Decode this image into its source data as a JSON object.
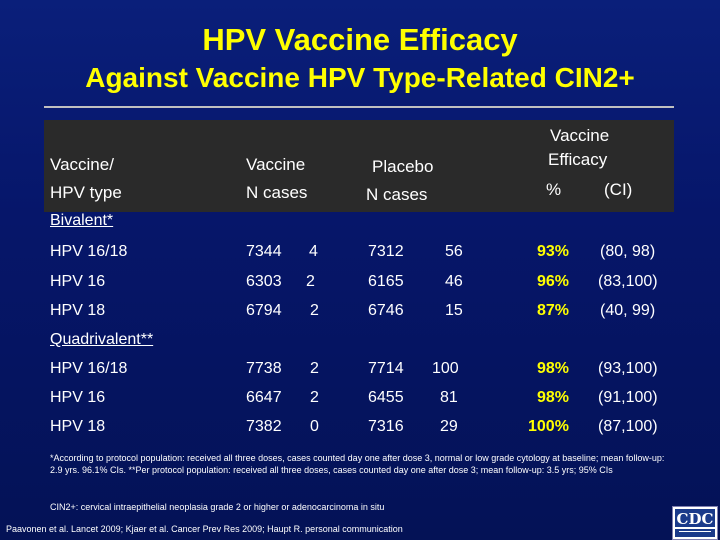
{
  "title": "HPV Vaccine Efficacy",
  "subtitle": "Against Vaccine HPV Type-Related CIN2+",
  "header": {
    "col1_line1": "Vaccine/",
    "col1_line2": "HPV type",
    "col2_line1": "Vaccine",
    "col2_line2": "N   cases",
    "col3_line1": "Placebo",
    "col3_line2": "N   cases",
    "col4_line1": "Vaccine",
    "col4_line2": "Efficacy",
    "col4_pct": "%",
    "col4_ci": "(CI)"
  },
  "sections": {
    "bivalent": "Bivalent*",
    "quadrivalent": "Quadrivalent**"
  },
  "rows": [
    {
      "type": "HPV 16/18",
      "vn": "7344",
      "vc": "4",
      "pn": "7312",
      "pc": "56",
      "eff": "93%",
      "ci": "(80, 98)"
    },
    {
      "type": "HPV 16",
      "vn": "6303",
      "vc": "2",
      "pn": "6165",
      "pc": "46",
      "eff": "96%",
      "ci": "(83,100)"
    },
    {
      "type": "HPV 18",
      "vn": "6794",
      "vc": "2",
      "pn": "6746",
      "pc": "15",
      "eff": "87%",
      "ci": "(40, 99)"
    },
    {
      "type": "HPV 16/18",
      "vn": "7738",
      "vc": "2",
      "pn": "7714",
      "pc": "100",
      "eff": "98%",
      "ci": "(93,100)"
    },
    {
      "type": "HPV 16",
      "vn": "6647",
      "vc": "2",
      "pn": "6455",
      "pc": "81",
      "eff": "98%",
      "ci": "(91,100)"
    },
    {
      "type": "HPV 18",
      "vn": "7382",
      "vc": "0",
      "pn": "7316",
      "pc": "29",
      "eff": "100%",
      "ci": "(87,100)"
    }
  ],
  "footnote": "*According to protocol population: received all three doses, cases counted day one after dose 3, normal or low grade cytology at baseline; mean follow-up: 2.9 yrs. 96.1% CIs. **Per protocol population: received all three doses, cases counted day one after dose 3; mean follow-up: 3.5 yrs; 95% CIs",
  "definition": "CIN2+: cervical intraepithelial neoplasia grade 2 or higher or adenocarcinoma in situ",
  "citation": "Paavonen et al. Lancet 2009; Kjaer et al. Cancer Prev Res 2009; Haupt R. personal communication",
  "logo": {
    "text": "CDC",
    "icon": "cdc-logo"
  },
  "colors": {
    "background": "#06166a",
    "title": "#ffff00",
    "efficacy": "#ffff00",
    "text": "#ffffff"
  }
}
